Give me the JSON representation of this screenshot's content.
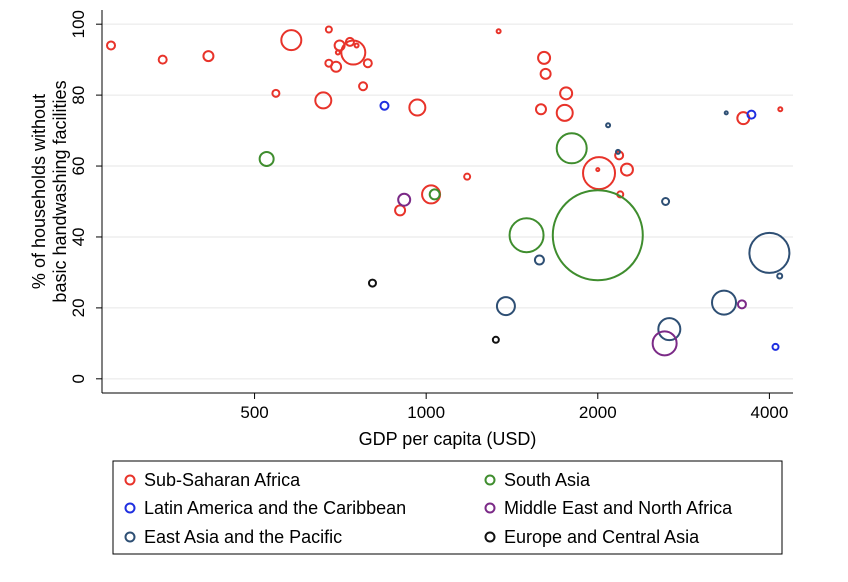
{
  "chart_data": {
    "type": "scatter",
    "title": "",
    "xlabel": "GDP per capita (USD)",
    "ylabel_lines": [
      "% of households without",
      "basic handwashing facilities"
    ],
    "x_scale": "log",
    "xlim": [
      270,
      4400
    ],
    "ylim": [
      -4,
      104
    ],
    "x_ticks": [
      500,
      1000,
      2000,
      4000
    ],
    "x_tick_labels": [
      "500",
      "1000",
      "2000",
      "4000"
    ],
    "y_ticks": [
      0,
      20,
      40,
      60,
      80,
      100
    ],
    "y_tick_labels": [
      "0",
      "20",
      "40",
      "60",
      "80",
      "100"
    ],
    "grid": "horizontal",
    "legend_position": "bottom",
    "marker_size_note": "bubble radius in px",
    "series": [
      {
        "name": "Sub-Saharan Africa",
        "color": "#e8332a",
        "points": [
          {
            "x": 280,
            "y": 94,
            "r": 4
          },
          {
            "x": 345,
            "y": 90,
            "r": 4
          },
          {
            "x": 415,
            "y": 91,
            "r": 5
          },
          {
            "x": 580,
            "y": 95.5,
            "r": 10
          },
          {
            "x": 745,
            "y": 92,
            "r": 12
          },
          {
            "x": 705,
            "y": 94,
            "r": 5
          },
          {
            "x": 735,
            "y": 95,
            "r": 4
          },
          {
            "x": 675,
            "y": 98.5,
            "r": 3
          },
          {
            "x": 675,
            "y": 89,
            "r": 3.5
          },
          {
            "x": 695,
            "y": 88,
            "r": 5
          },
          {
            "x": 700,
            "y": 92,
            "r": 2
          },
          {
            "x": 755,
            "y": 94,
            "r": 2
          },
          {
            "x": 790,
            "y": 89,
            "r": 4
          },
          {
            "x": 775,
            "y": 82.5,
            "r": 4
          },
          {
            "x": 545,
            "y": 80.5,
            "r": 3.5
          },
          {
            "x": 660,
            "y": 78.5,
            "r": 8
          },
          {
            "x": 965,
            "y": 76.5,
            "r": 8
          },
          {
            "x": 1180,
            "y": 57,
            "r": 3
          },
          {
            "x": 1020,
            "y": 52,
            "r": 9
          },
          {
            "x": 900,
            "y": 47.5,
            "r": 5
          },
          {
            "x": 1340,
            "y": 98,
            "r": 2
          },
          {
            "x": 1610,
            "y": 90.5,
            "r": 6
          },
          {
            "x": 1620,
            "y": 86,
            "r": 5
          },
          {
            "x": 1590,
            "y": 76,
            "r": 5
          },
          {
            "x": 1760,
            "y": 80.5,
            "r": 6
          },
          {
            "x": 1750,
            "y": 75,
            "r": 8
          },
          {
            "x": 2010,
            "y": 58,
            "r": 16
          },
          {
            "x": 2000,
            "y": 59,
            "r": 1.5
          },
          {
            "x": 2180,
            "y": 63,
            "r": 4
          },
          {
            "x": 2250,
            "y": 59,
            "r": 6
          },
          {
            "x": 2190,
            "y": 52,
            "r": 3
          },
          {
            "x": 3600,
            "y": 73.5,
            "r": 6
          },
          {
            "x": 4180,
            "y": 76,
            "r": 2
          }
        ]
      },
      {
        "name": "Latin America and the Caribbean",
        "color": "#1f2fe0",
        "points": [
          {
            "x": 845,
            "y": 77,
            "r": 4
          },
          {
            "x": 3720,
            "y": 74.5,
            "r": 4
          },
          {
            "x": 4100,
            "y": 9,
            "r": 3
          }
        ]
      },
      {
        "name": "East Asia and the Pacific",
        "color": "#2e4f74",
        "points": [
          {
            "x": 2085,
            "y": 71.5,
            "r": 2
          },
          {
            "x": 2170,
            "y": 64,
            "r": 2
          },
          {
            "x": 3360,
            "y": 75,
            "r": 1.5
          },
          {
            "x": 2630,
            "y": 50,
            "r": 3.5
          },
          {
            "x": 1580,
            "y": 33.5,
            "r": 4.5
          },
          {
            "x": 1380,
            "y": 20.5,
            "r": 9
          },
          {
            "x": 2670,
            "y": 14,
            "r": 11
          },
          {
            "x": 3330,
            "y": 21.5,
            "r": 12
          },
          {
            "x": 4000,
            "y": 35.5,
            "r": 20
          },
          {
            "x": 4170,
            "y": 29,
            "r": 2.5
          }
        ]
      },
      {
        "name": "South Asia",
        "color": "#3f8d2e",
        "points": [
          {
            "x": 525,
            "y": 62,
            "r": 7
          },
          {
            "x": 1500,
            "y": 40.5,
            "r": 17
          },
          {
            "x": 1800,
            "y": 65,
            "r": 15
          },
          {
            "x": 2000,
            "y": 40.5,
            "r": 45
          },
          {
            "x": 1035,
            "y": 52,
            "r": 5
          }
        ]
      },
      {
        "name": "Middle East and North Africa",
        "color": "#7b2a87",
        "points": [
          {
            "x": 915,
            "y": 50.5,
            "r": 6
          },
          {
            "x": 2620,
            "y": 10,
            "r": 12
          },
          {
            "x": 3580,
            "y": 21,
            "r": 4
          }
        ]
      },
      {
        "name": "Europe and Central Asia",
        "color": "#111111",
        "points": [
          {
            "x": 805,
            "y": 27,
            "r": 3.5
          },
          {
            "x": 1325,
            "y": 11,
            "r": 3
          }
        ]
      }
    ],
    "legend_order": [
      0,
      3,
      1,
      4,
      2,
      5
    ]
  }
}
